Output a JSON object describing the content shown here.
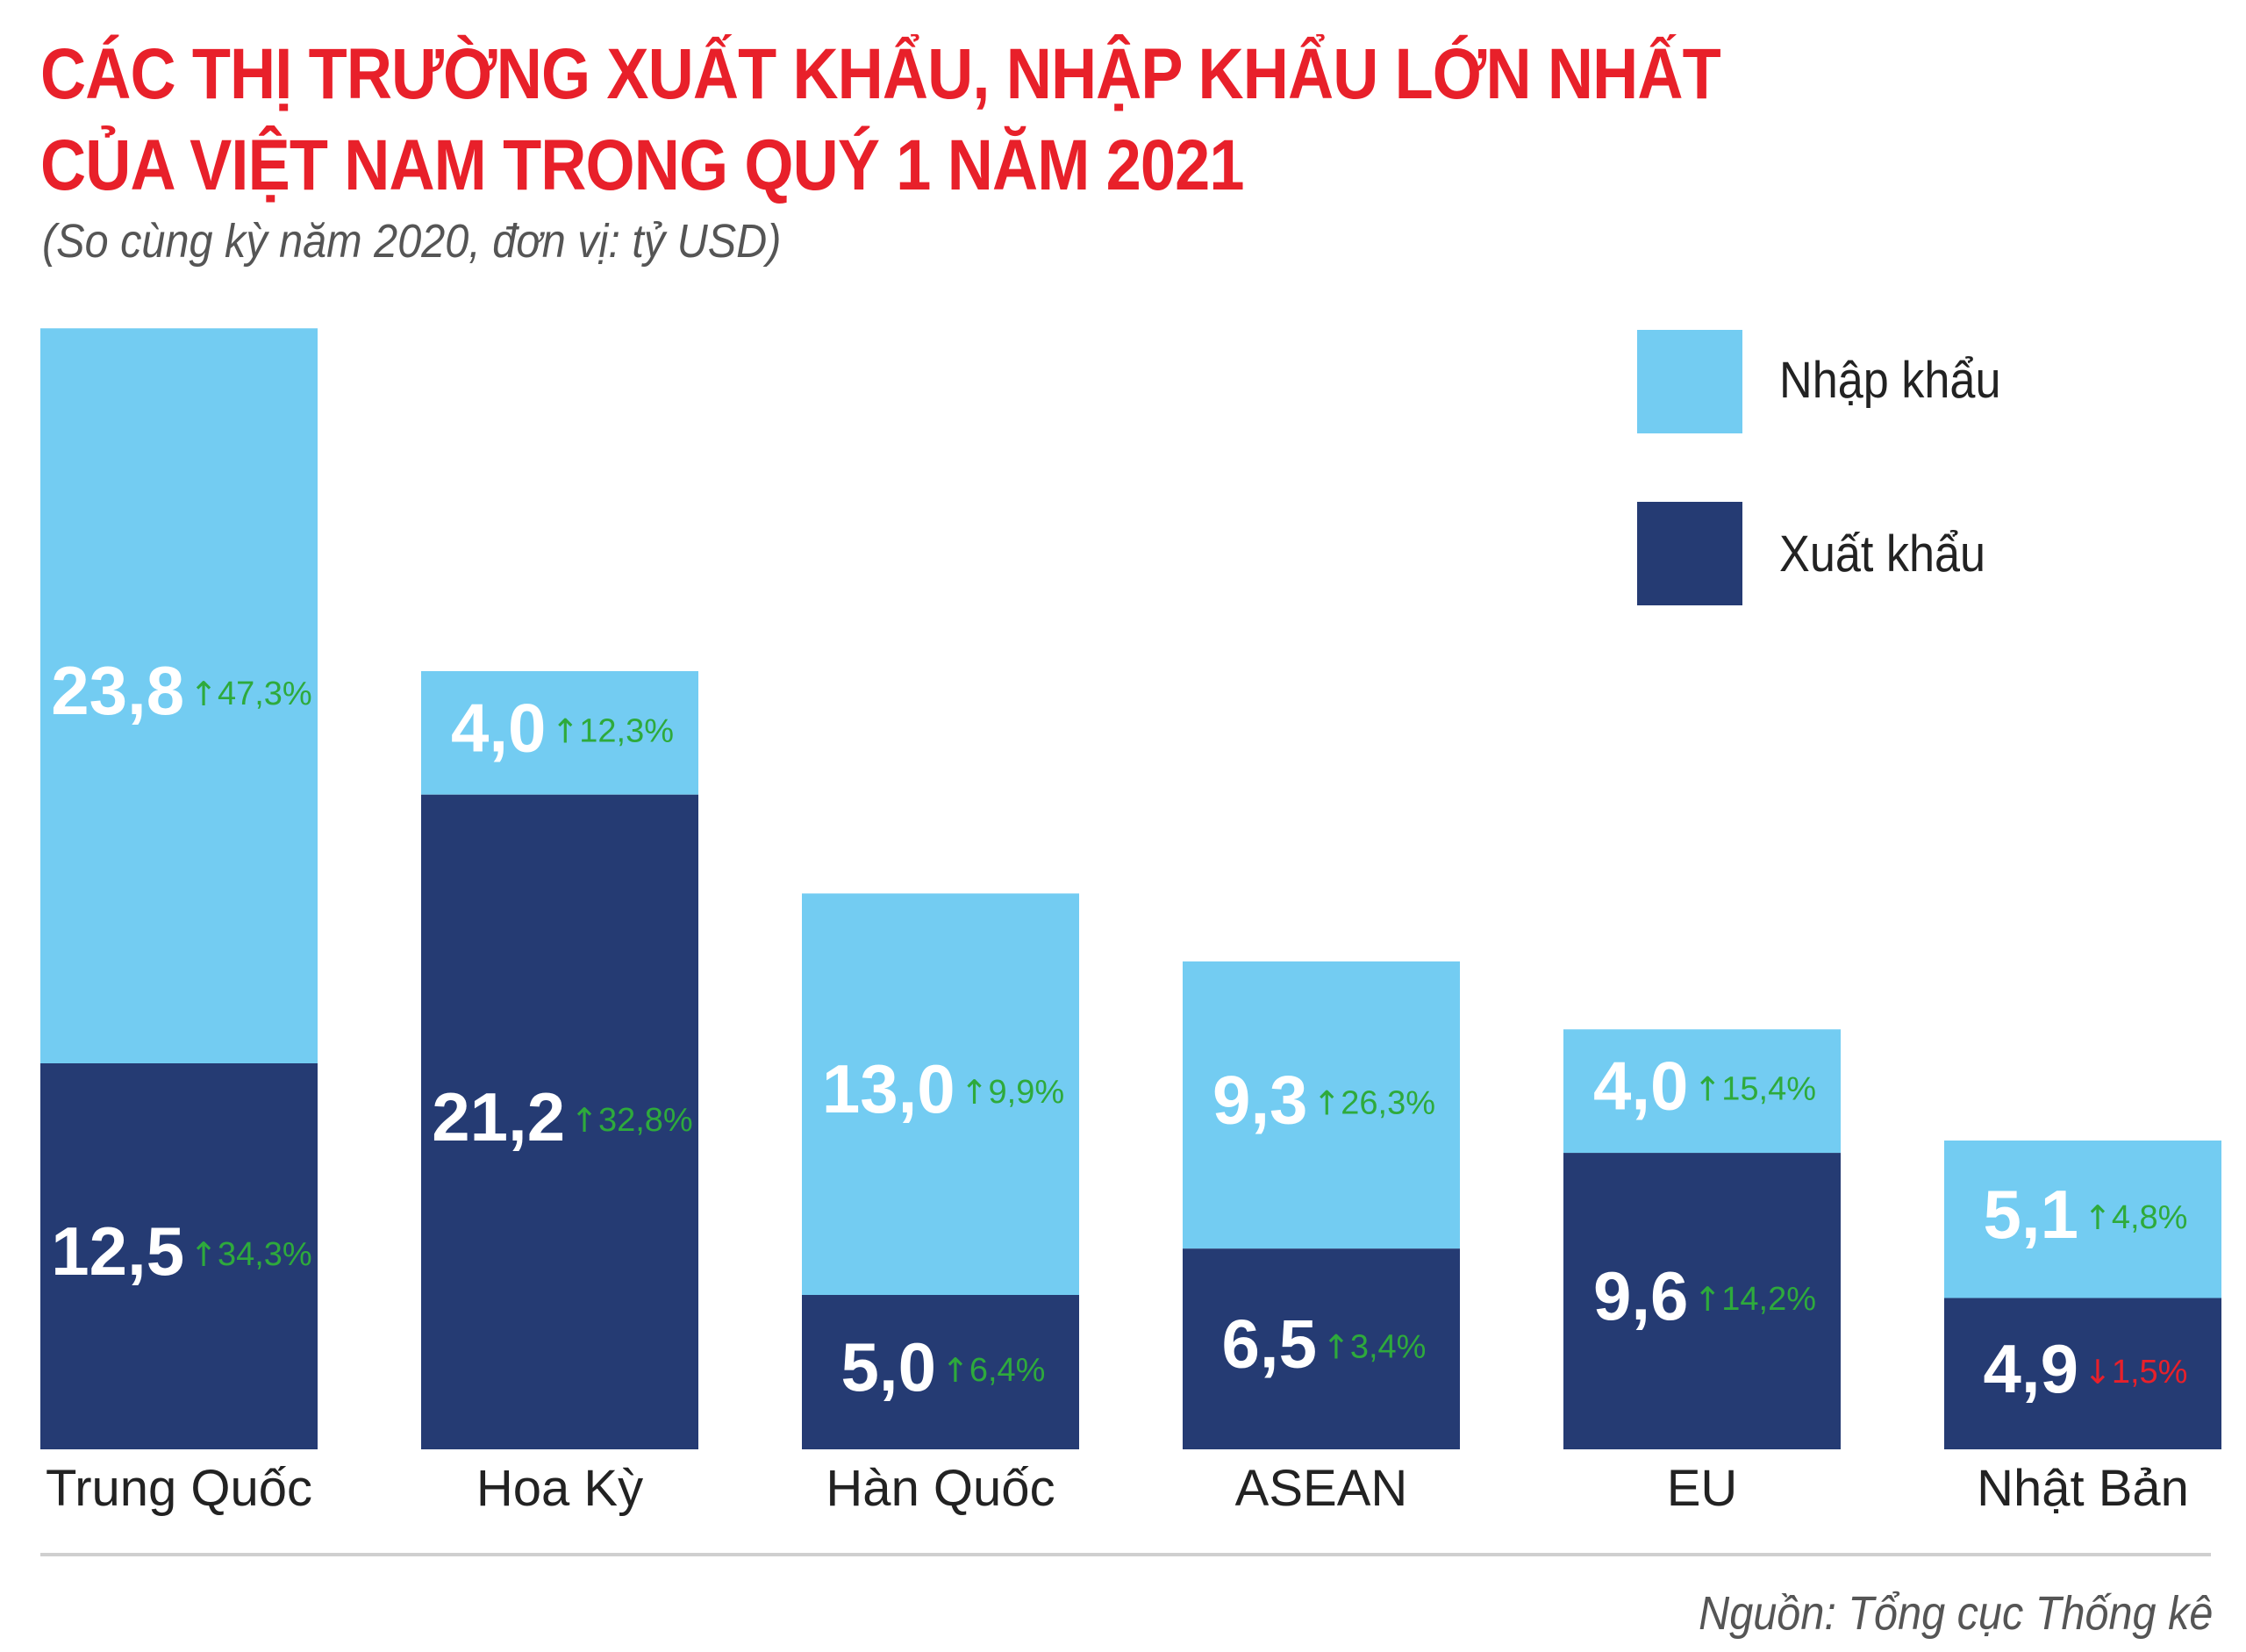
{
  "title_line1": "CÁC THỊ TRƯỜNG XUẤT KHẨU, NHẬP KHẨU LỚN NHẤT",
  "title_line2": "CỦA VIỆT NAM TRONG QUÝ 1 NĂM 2021",
  "subtitle": "(So cùng kỳ năm 2020, đơn vị: tỷ USD)",
  "source": "Nguồn: Tổng cục Thống kê",
  "colors": {
    "import": "#73ccf2",
    "export": "#253b73",
    "increase": "#2eaa3c",
    "decrease": "#e8202a",
    "title": "#e8202a"
  },
  "chart_data": {
    "type": "bar",
    "stacked": true,
    "categories": [
      "Trung Quốc",
      "Hoa Kỳ",
      "Hàn Quốc",
      "ASEAN",
      "EU",
      "Nhật Bản"
    ],
    "legend_position": "top-right",
    "series": [
      {
        "name": "Xuất khẩu",
        "values": [
          12.5,
          21.2,
          5.0,
          6.5,
          9.6,
          4.9
        ],
        "labels": [
          "12,5",
          "21,2",
          "5,0",
          "6,5",
          "9,6",
          "4,9"
        ],
        "changes": [
          "34,3%",
          "32,8%",
          "6,4%",
          "3,4%",
          "14,2%",
          "1,5%"
        ],
        "directions": [
          "up",
          "up",
          "up",
          "up",
          "up",
          "down"
        ]
      },
      {
        "name": "Nhập khẩu",
        "values": [
          23.8,
          4.0,
          13.0,
          9.3,
          4.0,
          5.1
        ],
        "labels": [
          "23,8",
          "4,0",
          "13,0",
          "9,3",
          "4,0",
          "5,1"
        ],
        "changes": [
          "47,3%",
          "12,3%",
          "9,9%",
          "26,3%",
          "15,4%",
          "4,8%"
        ],
        "directions": [
          "up",
          "up",
          "up",
          "up",
          "up",
          "up"
        ]
      }
    ]
  }
}
